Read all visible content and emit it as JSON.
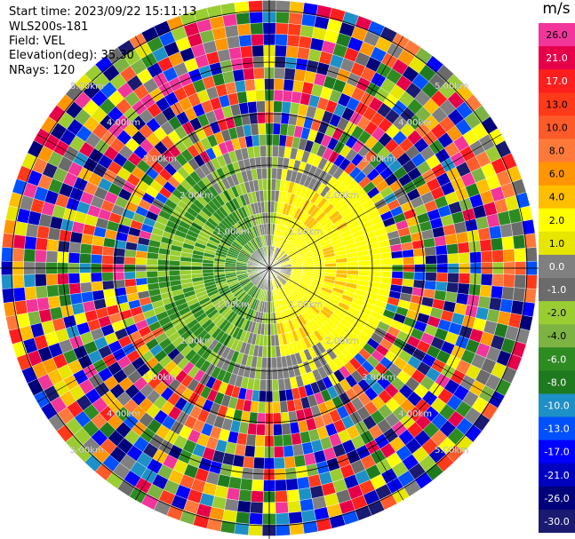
{
  "info": {
    "start_time": "Start time: 2023/09/22 15:11:13",
    "instrument": "WLS200s-181",
    "field": "Field: VEL",
    "elevation": "Elevation(deg): 35.30",
    "nrays": "NRays: 120"
  },
  "colorbar": {
    "title": "m/s",
    "ticks": [
      "26.0",
      "21.0",
      "17.0",
      "13.0",
      "10.0",
      "8.0",
      "6.0",
      "4.0",
      "2.0",
      "1.0",
      "0.0",
      "-1.0",
      "-2.0",
      "-4.0",
      "-6.0",
      "-8.0",
      "-10.0",
      "-13.0",
      "-17.0",
      "-21.0",
      "-26.0",
      "-30.0"
    ],
    "colors": [
      "#f2359a",
      "#e6004a",
      "#ff1e1e",
      "#ff3a1a",
      "#ff5a2a",
      "#ff7a3a",
      "#ff9500",
      "#ffbe00",
      "#ffff00",
      "#e6e600",
      "#808080",
      "#6b6b6b",
      "#9acd32",
      "#7cb342",
      "#2e8b22",
      "#1f7a1f",
      "#1e90c8",
      "#0050ff",
      "#0000ff",
      "#0000c0",
      "#00007a",
      "#1a1a70"
    ]
  },
  "chart_data": {
    "type": "heatmap",
    "subtype": "ppi-polar",
    "field": "VEL",
    "units": "m/s",
    "elevation_deg": 35.3,
    "nrays": 120,
    "range_rings_km": [
      1,
      2,
      3,
      4,
      5
    ],
    "range_ring_labels": [
      "1.00km",
      "2.00km",
      "3.00km",
      "4.00km",
      "5.00km"
    ],
    "spoke_angles_deg": [
      0,
      30,
      60,
      90,
      120,
      150,
      180,
      210,
      240,
      270,
      300,
      330
    ],
    "max_range_km": 5.2,
    "inner_region_km": 2.3,
    "inner_field_description_values": {
      "west_sector_ms": -6.0,
      "center_ms": 0.0,
      "east_sector_ms": 3.0
    },
    "outer_region": "noise"
  }
}
